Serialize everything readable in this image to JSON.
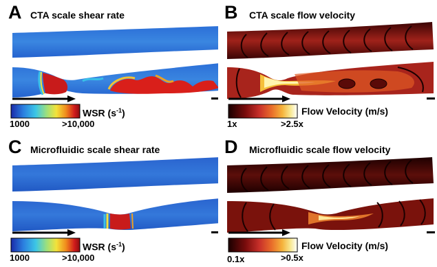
{
  "panels": [
    {
      "letter": "A",
      "title": "CTA scale shear rate",
      "colorbar": {
        "label_main": "WSR (s",
        "label_sup": "-1",
        "label_end": ")",
        "min_label": "1000",
        "max_label": ">10,000",
        "colormap": "jet"
      }
    },
    {
      "letter": "B",
      "title": "CTA scale flow velocity",
      "colorbar": {
        "label": "Flow Velocity (m/s)",
        "min_label": "1x",
        "max_label": ">2.5x",
        "colormap": "hot"
      }
    },
    {
      "letter": "C",
      "title": "Microfluidic scale shear rate",
      "colorbar": {
        "label_main": "WSR (s",
        "label_sup": "-1",
        "label_end": ")",
        "min_label": "1000",
        "max_label": ">10,000",
        "colormap": "jet"
      }
    },
    {
      "letter": "D",
      "title": "Microfluidic scale flow velocity",
      "colorbar": {
        "label": "Flow Velocity (m/s)",
        "min_label": "0.1x",
        "max_label": ">0.5x",
        "colormap": "hot"
      }
    }
  ],
  "colors": {
    "jet": [
      "#1e2fb8",
      "#2f7ee0",
      "#39c0e8",
      "#8fe07a",
      "#f3e23a",
      "#f08a1c",
      "#c8151b",
      "#8e0c10"
    ],
    "hot": [
      "#1a0000",
      "#7a0c0c",
      "#c8302a",
      "#e86a2a",
      "#f5b23a",
      "#f8e890",
      "#ffffff"
    ],
    "vessel_blue": "#2c6fd6",
    "vessel_dark": "#1f4fb6",
    "velocity_dark": "#2a0000",
    "velocity_red": "#9a1c14"
  }
}
